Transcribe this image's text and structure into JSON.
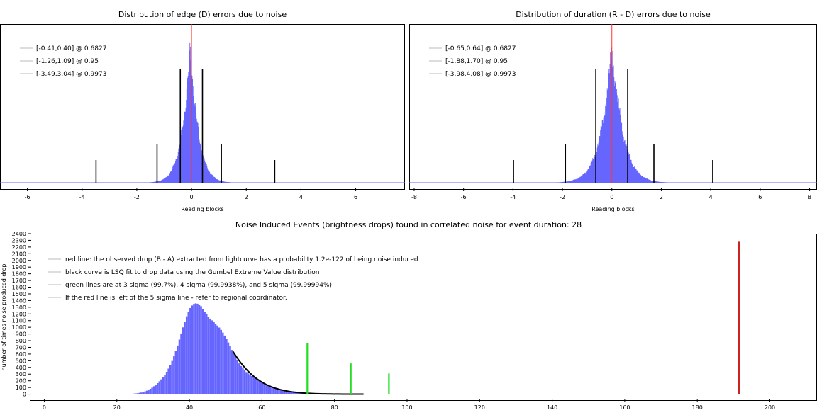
{
  "chart_data": [
    {
      "type": "bar",
      "title": "Distribution of edge (D) errors due to noise",
      "xlabel": "Reading blocks",
      "ylabel": "",
      "xlim": [
        -7,
        7.8
      ],
      "xticks": [
        -6,
        -4,
        -2,
        0,
        2,
        4,
        6
      ],
      "distribution": {
        "center": -0.05,
        "spread": 0.42,
        "shape": "laplace-like"
      },
      "red_line_x": 0,
      "interval_lines": {
        "sigma1": [
          -0.41,
          0.4
        ],
        "sigma2": [
          -1.26,
          1.09
        ],
        "sigma3": [
          -3.49,
          3.04
        ]
      },
      "legend": [
        "[-0.41,0.40] @ 0.6827",
        "[-1.26,1.09] @ 0.95",
        "[-3.49,3.04] @ 0.9973"
      ],
      "colors": {
        "bars": "#6666ff",
        "red_line": "#ff3333",
        "interval": "#000000"
      }
    },
    {
      "type": "bar",
      "title": "Distribution of duration (R - D) errors due to noise",
      "xlabel": "Reading blocks",
      "ylabel": "",
      "xlim": [
        -8.2,
        8.3
      ],
      "xticks": [
        -8,
        -6,
        -4,
        -2,
        0,
        2,
        4,
        6,
        8
      ],
      "distribution": {
        "center": 0,
        "spread": 0.62,
        "shape": "laplace-like"
      },
      "red_line_x": 0,
      "interval_lines": {
        "sigma1": [
          -0.65,
          0.64
        ],
        "sigma2": [
          -1.88,
          1.7
        ],
        "sigma3": [
          -3.98,
          4.08
        ]
      },
      "legend": [
        "[-0.65,0.64] @ 0.6827",
        "[-1.88,1.70] @ 0.95",
        "[-3.98,4.08] @ 0.9973"
      ],
      "colors": {
        "bars": "#6666ff",
        "red_line": "#ff3333",
        "interval": "#000000"
      }
    },
    {
      "type": "bar",
      "title": "Noise Induced Events (brightness drops) found in correlated noise for event duration: 28",
      "xlabel": "",
      "ylabel": "number of times noise produced drop",
      "xlim": [
        -4,
        213
      ],
      "ylim": [
        -100,
        2400
      ],
      "xticks": [
        0,
        20,
        40,
        60,
        80,
        100,
        120,
        140,
        160,
        180,
        200
      ],
      "yticks": [
        0,
        100,
        200,
        300,
        400,
        500,
        600,
        700,
        800,
        900,
        1000,
        1100,
        1200,
        1300,
        1400,
        1500,
        1600,
        1700,
        1800,
        1900,
        2000,
        2100,
        2200,
        2300,
        2400
      ],
      "histogram": {
        "mode": 43,
        "peak": 1480,
        "min_x": 16,
        "max_x": 90,
        "step": 0.5
      },
      "gumbel_fit": {
        "x_start": 52,
        "x_end": 88
      },
      "green_lines": [
        {
          "x": 72.5,
          "height": 760,
          "label": "3 sigma"
        },
        {
          "x": 84.5,
          "height": 460,
          "label": "4 sigma"
        },
        {
          "x": 95,
          "height": 310,
          "label": "5 sigma"
        }
      ],
      "red_line": {
        "x": 191.5,
        "height": 2280
      },
      "legend": [
        "red line: the observed drop (B - A) extracted from lightcurve has a probability 1.2e-122 of being noise induced",
        "black curve is LSQ fit to drop data using the Gumbel Extreme Value distribution",
        "green lines are at 3 sigma (99.7%), 4 sigma (99.9938%), and 5 sigma (99.99994%)",
        "If the red line is left of the 5 sigma line - refer to regional coordinator."
      ],
      "colors": {
        "bars": "#6666ff",
        "red_line": "#cc2222",
        "green_lines": "#22dd22",
        "fit": "#000000"
      }
    }
  ]
}
